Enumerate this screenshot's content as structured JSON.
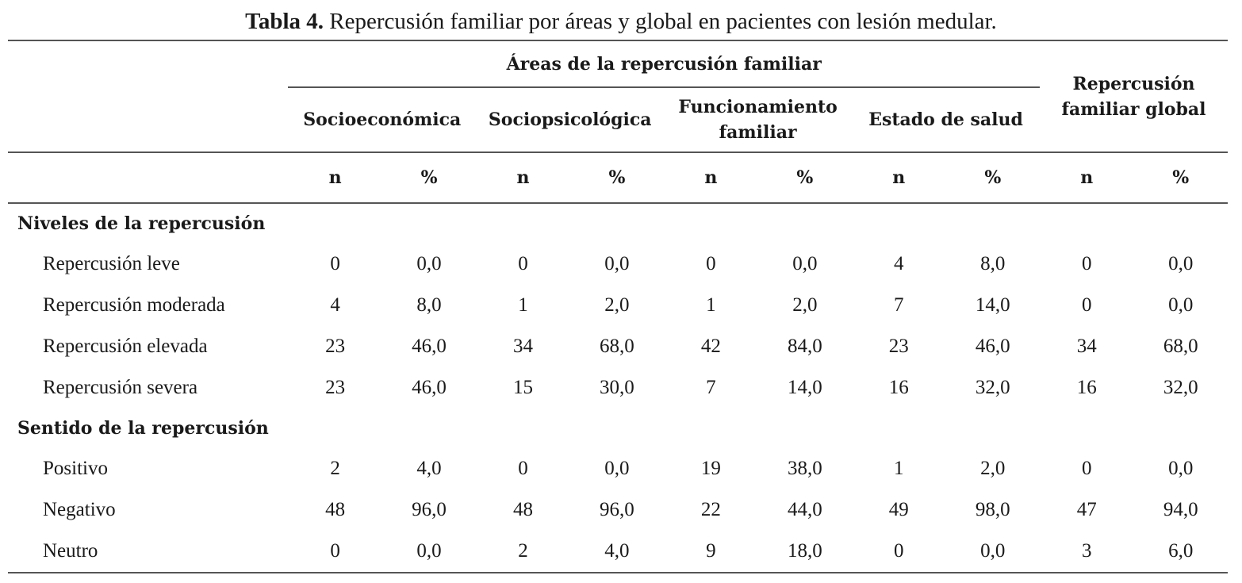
{
  "caption": {
    "label": "Tabla 4.",
    "text": "Repercusión familiar por áreas y global en pacientes con lesión medular."
  },
  "header": {
    "areas_group": "Áreas de la repercusión familiar",
    "global": "Repercusión familiar global",
    "areas": [
      "Socioeconómica",
      "Sociopsicológica",
      "Funcionamiento familiar",
      "Estado de salud"
    ],
    "sub": [
      "n",
      "%",
      "n",
      "%",
      "n",
      "%",
      "n",
      "%",
      "n",
      "%"
    ]
  },
  "sections": [
    {
      "title": "Niveles de la repercusión",
      "rows": [
        {
          "label": "Repercusión leve",
          "cells": [
            "0",
            "0,0",
            "0",
            "0,0",
            "0",
            "0,0",
            "4",
            "8,0",
            "0",
            "0,0"
          ]
        },
        {
          "label": "Repercusión moderada",
          "cells": [
            "4",
            "8,0",
            "1",
            "2,0",
            "1",
            "2,0",
            "7",
            "14,0",
            "0",
            "0,0"
          ]
        },
        {
          "label": "Repercusión elevada",
          "cells": [
            "23",
            "46,0",
            "34",
            "68,0",
            "42",
            "84,0",
            "23",
            "46,0",
            "34",
            "68,0"
          ]
        },
        {
          "label": "Repercusión severa",
          "cells": [
            "23",
            "46,0",
            "15",
            "30,0",
            "7",
            "14,0",
            "16",
            "32,0",
            "16",
            "32,0"
          ]
        }
      ]
    },
    {
      "title": "Sentido de la repercusión",
      "rows": [
        {
          "label": "Positivo",
          "cells": [
            "2",
            "4,0",
            "0",
            "0,0",
            "19",
            "38,0",
            "1",
            "2,0",
            "0",
            "0,0"
          ]
        },
        {
          "label": "Negativo",
          "cells": [
            "48",
            "96,0",
            "48",
            "96,0",
            "22",
            "44,0",
            "49",
            "98,0",
            "47",
            "94,0"
          ]
        },
        {
          "label": "Neutro",
          "cells": [
            "0",
            "0,0",
            "2",
            "4,0",
            "9",
            "18,0",
            "0",
            "0,0",
            "3",
            "6,0"
          ]
        }
      ]
    }
  ]
}
